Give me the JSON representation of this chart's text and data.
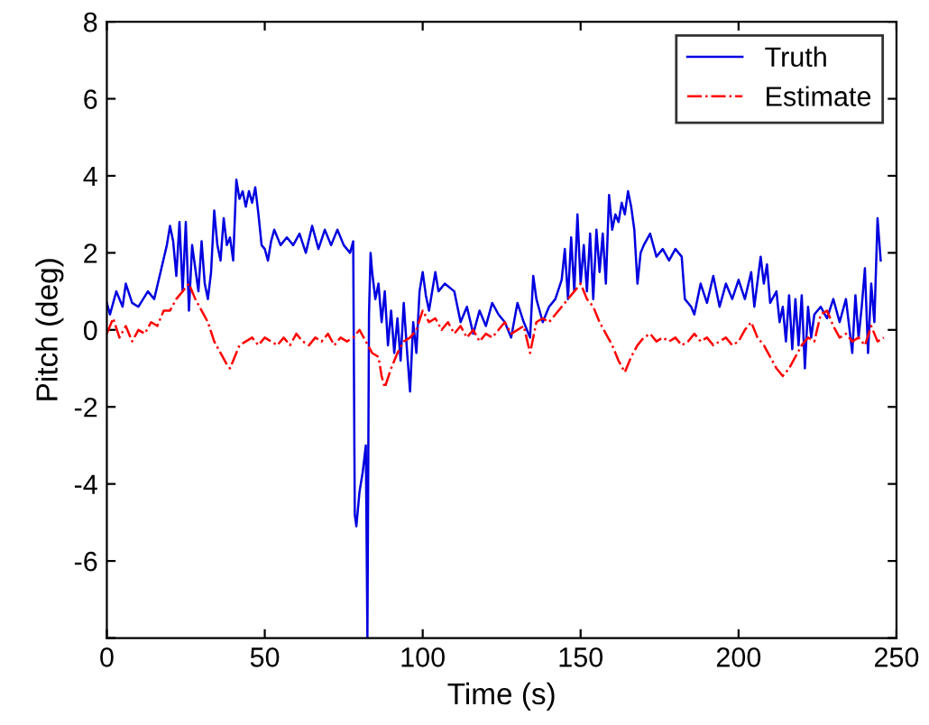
{
  "chart_data": {
    "type": "line",
    "xlabel": "Time (s)",
    "ylabel": "Pitch (deg)",
    "xlim": [
      0,
      250
    ],
    "xticks": [
      0,
      50,
      100,
      150,
      200,
      250
    ],
    "ylim": [
      -8,
      8
    ],
    "yticks": [
      {
        "value": -8,
        "label": null
      },
      -6,
      -4,
      -2,
      0,
      2,
      4,
      6,
      8
    ],
    "grid": false,
    "legend": "top right",
    "marker": "none",
    "series": [
      {
        "name": "Truth",
        "color": "#0000e0",
        "line_style": "solid",
        "x": [
          0,
          1,
          3,
          5,
          6,
          8,
          10,
          13,
          15,
          17,
          19,
          20,
          21,
          22,
          23,
          24,
          25,
          26,
          27,
          28,
          29,
          30,
          31,
          32,
          33,
          34,
          35,
          36,
          37,
          38,
          39,
          40,
          41,
          42,
          43,
          44,
          45,
          46,
          47,
          48,
          49,
          50,
          51,
          52,
          53,
          55,
          57,
          59,
          61,
          63,
          65,
          67,
          69,
          71,
          73,
          75,
          77,
          78,
          78.5,
          79,
          80,
          81,
          82,
          82.5,
          83,
          83.5,
          84,
          85,
          86,
          87,
          88,
          89,
          90,
          91,
          92,
          93,
          94,
          95,
          96,
          97,
          98,
          99,
          100,
          101,
          102,
          104,
          105,
          107,
          110,
          112,
          114,
          116,
          118,
          120,
          122,
          124,
          126,
          128,
          130,
          132,
          134,
          135,
          136,
          138,
          140,
          142,
          144,
          145,
          146,
          147,
          148,
          149,
          150,
          151,
          152,
          153,
          154,
          155,
          156,
          157,
          158,
          159,
          160,
          161,
          162,
          163,
          164,
          165,
          166,
          167,
          168,
          169,
          170,
          172,
          174,
          176,
          178,
          180,
          182,
          183,
          185,
          186,
          188,
          190,
          192,
          194,
          196,
          198,
          200,
          202,
          204,
          205,
          207,
          208,
          209,
          210,
          212,
          213,
          214,
          215,
          216,
          217,
          218,
          219,
          220,
          221,
          222,
          223,
          224,
          226,
          228,
          230,
          232,
          234,
          236,
          237,
          238,
          239,
          240,
          241,
          242,
          243,
          244,
          245
        ],
        "values": [
          0.7,
          0.4,
          1.0,
          0.6,
          1.2,
          0.7,
          0.6,
          1.0,
          0.8,
          1.5,
          2.2,
          2.7,
          2.3,
          1.4,
          2.8,
          1.0,
          2.8,
          0.5,
          2.2,
          1.6,
          1.0,
          2.3,
          1.2,
          0.8,
          1.5,
          3.1,
          2.2,
          1.8,
          2.9,
          2.2,
          2.4,
          1.8,
          3.9,
          3.4,
          3.6,
          3.2,
          3.6,
          3.3,
          3.7,
          3.0,
          2.2,
          2.1,
          1.8,
          2.3,
          2.6,
          2.2,
          2.4,
          2.2,
          2.5,
          2.0,
          2.7,
          2.1,
          2.6,
          2.2,
          2.6,
          2.2,
          2.0,
          2.3,
          -4.8,
          -5.1,
          -4.2,
          -3.7,
          -3.0,
          -8,
          0.4,
          2.0,
          1.5,
          0.8,
          1.2,
          0.2,
          1.0,
          -0.4,
          0.5,
          -0.6,
          0.3,
          -0.8,
          0.7,
          -0.5,
          -1.6,
          0.2,
          -0.6,
          1.0,
          1.5,
          0.9,
          0.5,
          1.5,
          1.0,
          1.2,
          1.0,
          0.2,
          0.6,
          -0.1,
          0.5,
          0.1,
          0.7,
          0.4,
          0.2,
          -0.2,
          0.7,
          0.2,
          -0.2,
          1.4,
          0.8,
          0.2,
          0.6,
          0.8,
          1.3,
          2.1,
          0.8,
          2.4,
          1.0,
          3.0,
          1.2,
          2.2,
          1.0,
          2.5,
          0.8,
          2.6,
          1.5,
          2.5,
          1.2,
          3.5,
          2.6,
          3.0,
          2.8,
          3.3,
          3.0,
          3.6,
          3.2,
          2.6,
          1.2,
          2.0,
          2.2,
          2.5,
          1.9,
          2.1,
          1.8,
          2.1,
          1.9,
          0.8,
          0.6,
          0.4,
          1.2,
          0.7,
          1.4,
          0.6,
          1.2,
          0.8,
          1.3,
          0.8,
          1.5,
          0.6,
          1.9,
          1.2,
          1.7,
          0.7,
          1.0,
          0.2,
          0.6,
          -0.3,
          0.9,
          -0.5,
          0.8,
          -0.4,
          0.9,
          -1.0,
          0.6,
          -0.2,
          0.4,
          0.6,
          0.3,
          0.8,
          0.2,
          0.8,
          -0.6,
          0.9,
          -0.2,
          0.6,
          1.6,
          -0.6,
          1.2,
          0.2,
          2.9,
          1.8
        ]
      },
      {
        "name": "Estimate",
        "color": "#ff0000",
        "line_style": "dashdot",
        "x": [
          0,
          2,
          4,
          6,
          8,
          10,
          12,
          14,
          16,
          18,
          20,
          22,
          24,
          26,
          28,
          30,
          32,
          34,
          36,
          38,
          39,
          40,
          42,
          44,
          46,
          48,
          50,
          52,
          54,
          56,
          58,
          60,
          62,
          64,
          66,
          68,
          70,
          72,
          74,
          76,
          78,
          80,
          82,
          84,
          86,
          87,
          88,
          90,
          92,
          94,
          96,
          98,
          100,
          102,
          104,
          106,
          108,
          110,
          112,
          114,
          116,
          118,
          120,
          122,
          124,
          126,
          128,
          130,
          132,
          134,
          136,
          138,
          140,
          142,
          144,
          146,
          148,
          150,
          152,
          154,
          156,
          158,
          160,
          162,
          164,
          166,
          168,
          170,
          172,
          174,
          176,
          178,
          180,
          182,
          184,
          186,
          188,
          190,
          192,
          194,
          196,
          198,
          200,
          202,
          204,
          206,
          208,
          210,
          212,
          214,
          216,
          218,
          220,
          222,
          224,
          226,
          228,
          230,
          232,
          234,
          236,
          238,
          240,
          242,
          244,
          246
        ],
        "values": [
          -0.1,
          0.3,
          -0.2,
          0.1,
          -0.3,
          0.0,
          -0.1,
          0.2,
          0.1,
          0.5,
          0.5,
          0.8,
          1.0,
          1.2,
          0.8,
          0.5,
          0.2,
          -0.3,
          -0.6,
          -0.9,
          -1.0,
          -0.8,
          -0.4,
          -0.3,
          -0.2,
          -0.4,
          -0.2,
          -0.3,
          -0.4,
          -0.2,
          -0.4,
          -0.1,
          -0.3,
          -0.4,
          -0.2,
          -0.3,
          -0.1,
          -0.4,
          -0.2,
          -0.3,
          -0.2,
          0.0,
          -0.3,
          -0.6,
          -0.7,
          -1.2,
          -1.5,
          -1.0,
          -0.6,
          -0.3,
          -0.2,
          0.0,
          0.5,
          0.2,
          0.3,
          0.0,
          0.2,
          -0.1,
          0.1,
          -0.2,
          0.0,
          -0.3,
          -0.1,
          -0.2,
          0.0,
          0.2,
          -0.1,
          0.0,
          0.1,
          -0.6,
          0.2,
          0.3,
          0.2,
          0.4,
          0.6,
          0.8,
          1.0,
          1.2,
          0.8,
          0.6,
          0.2,
          -0.1,
          -0.4,
          -0.8,
          -1.1,
          -0.7,
          -0.4,
          -0.2,
          -0.1,
          -0.3,
          -0.2,
          -0.3,
          -0.2,
          -0.4,
          -0.3,
          -0.1,
          -0.3,
          -0.2,
          -0.4,
          -0.3,
          -0.2,
          -0.4,
          -0.3,
          0.0,
          0.2,
          -0.2,
          -0.4,
          -0.7,
          -1.0,
          -1.2,
          -1.0,
          -0.7,
          -0.4,
          -0.2,
          -0.3,
          0.4,
          0.5,
          0.1,
          -0.2,
          -0.1,
          -0.3,
          -0.2,
          -0.4,
          0.1,
          -0.3,
          -0.2
        ]
      }
    ]
  }
}
